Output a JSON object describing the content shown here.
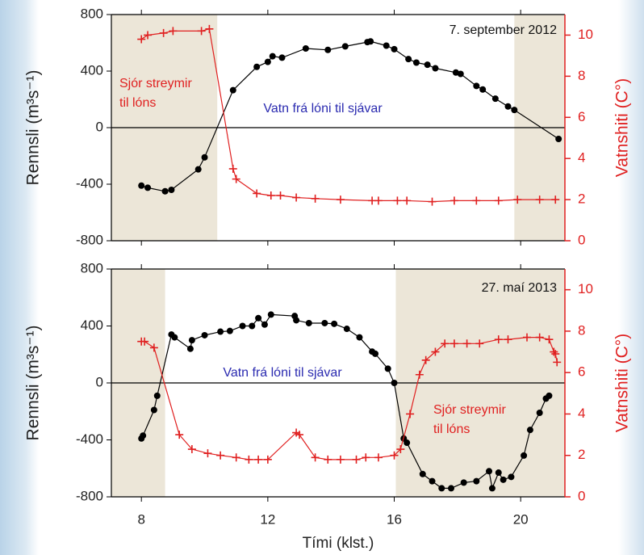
{
  "chart_data": [
    {
      "type": "line",
      "ylabel": "Rennsli (m³s⁻¹)",
      "y2label": "Vatnshiti (C°)",
      "annotations": {
        "date": "7. september 2012",
        "flow": "Vatn frá lóni til sjávar",
        "inflow": [
          "Sjór streymir",
          "til lóns"
        ]
      },
      "xlim": [
        7.05,
        21.4
      ],
      "xticks": [
        8,
        12,
        16,
        20
      ],
      "show_xtick_labels": false,
      "ylim": [
        -800,
        800
      ],
      "yticks": [
        -800,
        -400,
        0,
        400,
        800
      ],
      "y2lim": [
        0,
        11
      ],
      "y2ticks": [
        0,
        2,
        4,
        6,
        8,
        10
      ],
      "shaded_regions": [
        [
          7.05,
          10.4
        ],
        [
          19.8,
          21.4
        ]
      ],
      "shade_color": "#ece6d8",
      "series": [
        {
          "color": "#000000",
          "marker": "circle",
          "x": [
            8.0,
            8.2,
            8.75,
            8.95,
            9.8,
            10.0,
            10.9,
            11.65,
            12.0,
            12.15,
            12.45,
            13.2,
            13.9,
            14.45,
            15.15,
            15.25,
            15.75,
            16.0,
            16.45,
            16.7,
            17.05,
            17.3,
            17.95,
            18.1,
            18.6,
            18.8,
            19.2,
            19.6,
            19.8,
            21.2
          ],
          "values": [
            -410,
            -425,
            -450,
            -440,
            -295,
            -210,
            265,
            430,
            465,
            505,
            495,
            560,
            550,
            575,
            605,
            610,
            580,
            555,
            485,
            460,
            445,
            420,
            390,
            380,
            295,
            270,
            205,
            150,
            125,
            -80
          ]
        },
        {
          "color": "#e02020",
          "marker": "plus",
          "axis": "y2",
          "x": [
            8.0,
            8.2,
            8.7,
            9.0,
            9.9,
            10.15,
            10.9,
            11.0,
            11.65,
            12.1,
            12.4,
            12.9,
            13.5,
            14.3,
            15.3,
            15.5,
            16.1,
            16.4,
            17.2,
            17.9,
            18.6,
            19.3,
            19.9,
            20.6,
            21.1
          ],
          "values": [
            9.8,
            10.0,
            10.1,
            10.2,
            10.2,
            10.3,
            3.5,
            3.0,
            2.3,
            2.2,
            2.2,
            2.1,
            2.05,
            2.0,
            1.95,
            1.95,
            1.95,
            1.95,
            1.9,
            1.95,
            1.95,
            1.95,
            2.0,
            2.0,
            2.0
          ]
        }
      ]
    },
    {
      "type": "line",
      "ylabel": "Rennsli (m³s⁻¹)",
      "y2label": "Vatnshiti (C°)",
      "xlabel": "Tími (klst.)",
      "annotations": {
        "date": "27. maí 2013",
        "flow": "Vatn frá lóni til sjávar",
        "inflow": [
          "Sjór streymir",
          "til lóns"
        ]
      },
      "xlim": [
        7.05,
        21.4
      ],
      "xticks": [
        8,
        12,
        16,
        20
      ],
      "show_xtick_labels": true,
      "ylim": [
        -800,
        800
      ],
      "yticks": [
        -800,
        -400,
        0,
        400,
        800
      ],
      "y2lim": [
        0,
        11
      ],
      "y2ticks": [
        0,
        2,
        4,
        6,
        8,
        10
      ],
      "shaded_regions": [
        [
          7.05,
          8.75
        ],
        [
          16.05,
          21.4
        ]
      ],
      "shade_color": "#ece6d8",
      "series": [
        {
          "color": "#000000",
          "marker": "circle",
          "x": [
            8.0,
            8.05,
            8.4,
            8.5,
            8.95,
            9.05,
            9.55,
            9.6,
            10.0,
            10.5,
            10.8,
            11.2,
            11.5,
            11.7,
            11.9,
            12.1,
            12.85,
            12.9,
            13.3,
            13.8,
            14.1,
            14.5,
            14.9,
            15.3,
            15.4,
            15.8,
            16.0,
            16.3,
            16.4,
            16.9,
            17.2,
            17.5,
            17.8,
            18.2,
            18.6,
            19.0,
            19.1,
            19.3,
            19.45,
            19.7,
            20.1,
            20.3,
            20.6,
            20.8,
            20.9
          ],
          "values": [
            -390,
            -370,
            -190,
            -90,
            340,
            320,
            240,
            300,
            335,
            360,
            365,
            400,
            400,
            455,
            410,
            480,
            470,
            440,
            420,
            420,
            415,
            380,
            320,
            220,
            205,
            100,
            0,
            -390,
            -420,
            -640,
            -690,
            -740,
            -740,
            -700,
            -690,
            -620,
            -740,
            -630,
            -680,
            -660,
            -510,
            -330,
            -210,
            -110,
            -90
          ]
        },
        {
          "color": "#e02020",
          "marker": "plus",
          "axis": "y2",
          "x": [
            8.0,
            8.1,
            8.4,
            9.2,
            9.6,
            10.1,
            10.5,
            11.0,
            11.4,
            11.7,
            12.0,
            12.9,
            13.0,
            13.5,
            13.9,
            14.3,
            14.8,
            15.1,
            15.5,
            16.0,
            16.2,
            16.5,
            16.8,
            17.0,
            17.3,
            17.6,
            17.9,
            18.3,
            18.7,
            19.3,
            19.6,
            20.2,
            20.6,
            20.9,
            21.05,
            21.1,
            21.15
          ],
          "values": [
            7.5,
            7.5,
            7.2,
            3.0,
            2.3,
            2.1,
            2.0,
            1.9,
            1.8,
            1.8,
            1.8,
            3.1,
            3.0,
            1.9,
            1.8,
            1.8,
            1.8,
            1.9,
            1.9,
            2.0,
            2.3,
            4.0,
            5.9,
            6.6,
            7.0,
            7.4,
            7.4,
            7.4,
            7.4,
            7.6,
            7.6,
            7.7,
            7.7,
            7.6,
            7.0,
            6.9,
            6.5
          ]
        }
      ]
    }
  ]
}
